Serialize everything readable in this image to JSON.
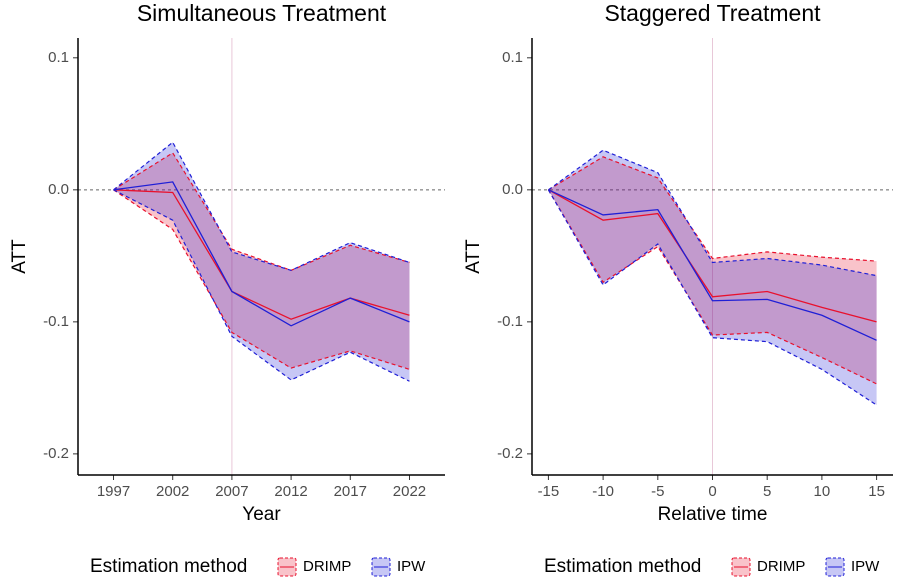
{
  "chart_data": [
    {
      "type": "line",
      "title": "Simultaneous Treatment",
      "x_label": "Year",
      "y_label": "ATT",
      "x": [
        1997,
        2002,
        2007,
        2012,
        2017,
        2022
      ],
      "series": [
        {
          "name": "DRIMP",
          "color": "#e8112d",
          "values": [
            0,
            -0.002,
            -0.077,
            -0.098,
            -0.082,
            -0.095
          ],
          "lower": [
            0,
            -0.03,
            -0.108,
            -0.135,
            -0.122,
            -0.136
          ],
          "upper": [
            0,
            0.028,
            -0.045,
            -0.061,
            -0.042,
            -0.055
          ]
        },
        {
          "name": "IPW",
          "color": "#1f1fd6",
          "values": [
            0,
            0.006,
            -0.077,
            -0.103,
            -0.082,
            -0.1
          ],
          "lower": [
            0,
            -0.023,
            -0.111,
            -0.144,
            -0.123,
            -0.145
          ],
          "upper": [
            0,
            0.036,
            -0.047,
            -0.061,
            -0.04,
            -0.055
          ]
        }
      ],
      "xlim": [
        1994,
        2025
      ],
      "xticks": [
        1997,
        2002,
        2007,
        2012,
        2017,
        2022
      ],
      "ylim": [
        -0.216,
        0.115
      ],
      "yticks": [
        {
          "value": -0.2,
          "label": "-0.2"
        },
        {
          "value": -0.1,
          "label": "-0.1"
        },
        {
          "value": 0,
          "label": "0.0"
        },
        {
          "value": 0.1,
          "label": "0.1"
        }
      ],
      "hline": 0,
      "vline": 2007,
      "legend_title": "Estimation method",
      "legend": "bottom"
    },
    {
      "type": "line",
      "title": "Staggered Treatment",
      "x_label": "Relative time",
      "y_label": "ATT",
      "x": [
        -15,
        -10,
        -5,
        0,
        5,
        10,
        15
      ],
      "series": [
        {
          "name": "DRIMP",
          "color": "#e8112d",
          "values": [
            0,
            -0.023,
            -0.018,
            -0.081,
            -0.077,
            -0.089,
            -0.1
          ],
          "lower": [
            0,
            -0.07,
            -0.043,
            -0.11,
            -0.108,
            -0.127,
            -0.147
          ],
          "upper": [
            0,
            0.025,
            0.009,
            -0.052,
            -0.047,
            -0.051,
            -0.054
          ]
        },
        {
          "name": "IPW",
          "color": "#1f1fd6",
          "values": [
            0,
            -0.019,
            -0.015,
            -0.084,
            -0.083,
            -0.095,
            -0.114
          ],
          "lower": [
            0,
            -0.072,
            -0.041,
            -0.112,
            -0.115,
            -0.136,
            -0.163
          ],
          "upper": [
            0,
            0.03,
            0.013,
            -0.055,
            -0.052,
            -0.057,
            -0.065
          ]
        }
      ],
      "xlim": [
        -16.5,
        16.5
      ],
      "xticks": [
        -15,
        -10,
        -5,
        0,
        5,
        10,
        15
      ],
      "ylim": [
        -0.216,
        0.115
      ],
      "yticks": [
        {
          "value": -0.2,
          "label": "-0.2"
        },
        {
          "value": -0.1,
          "label": "-0.1"
        },
        {
          "value": 0,
          "label": "0.0"
        },
        {
          "value": 0.1,
          "label": "0.1"
        }
      ],
      "hline": 0,
      "vline": 0,
      "legend_title": "Estimation method",
      "legend": "bottom"
    }
  ]
}
